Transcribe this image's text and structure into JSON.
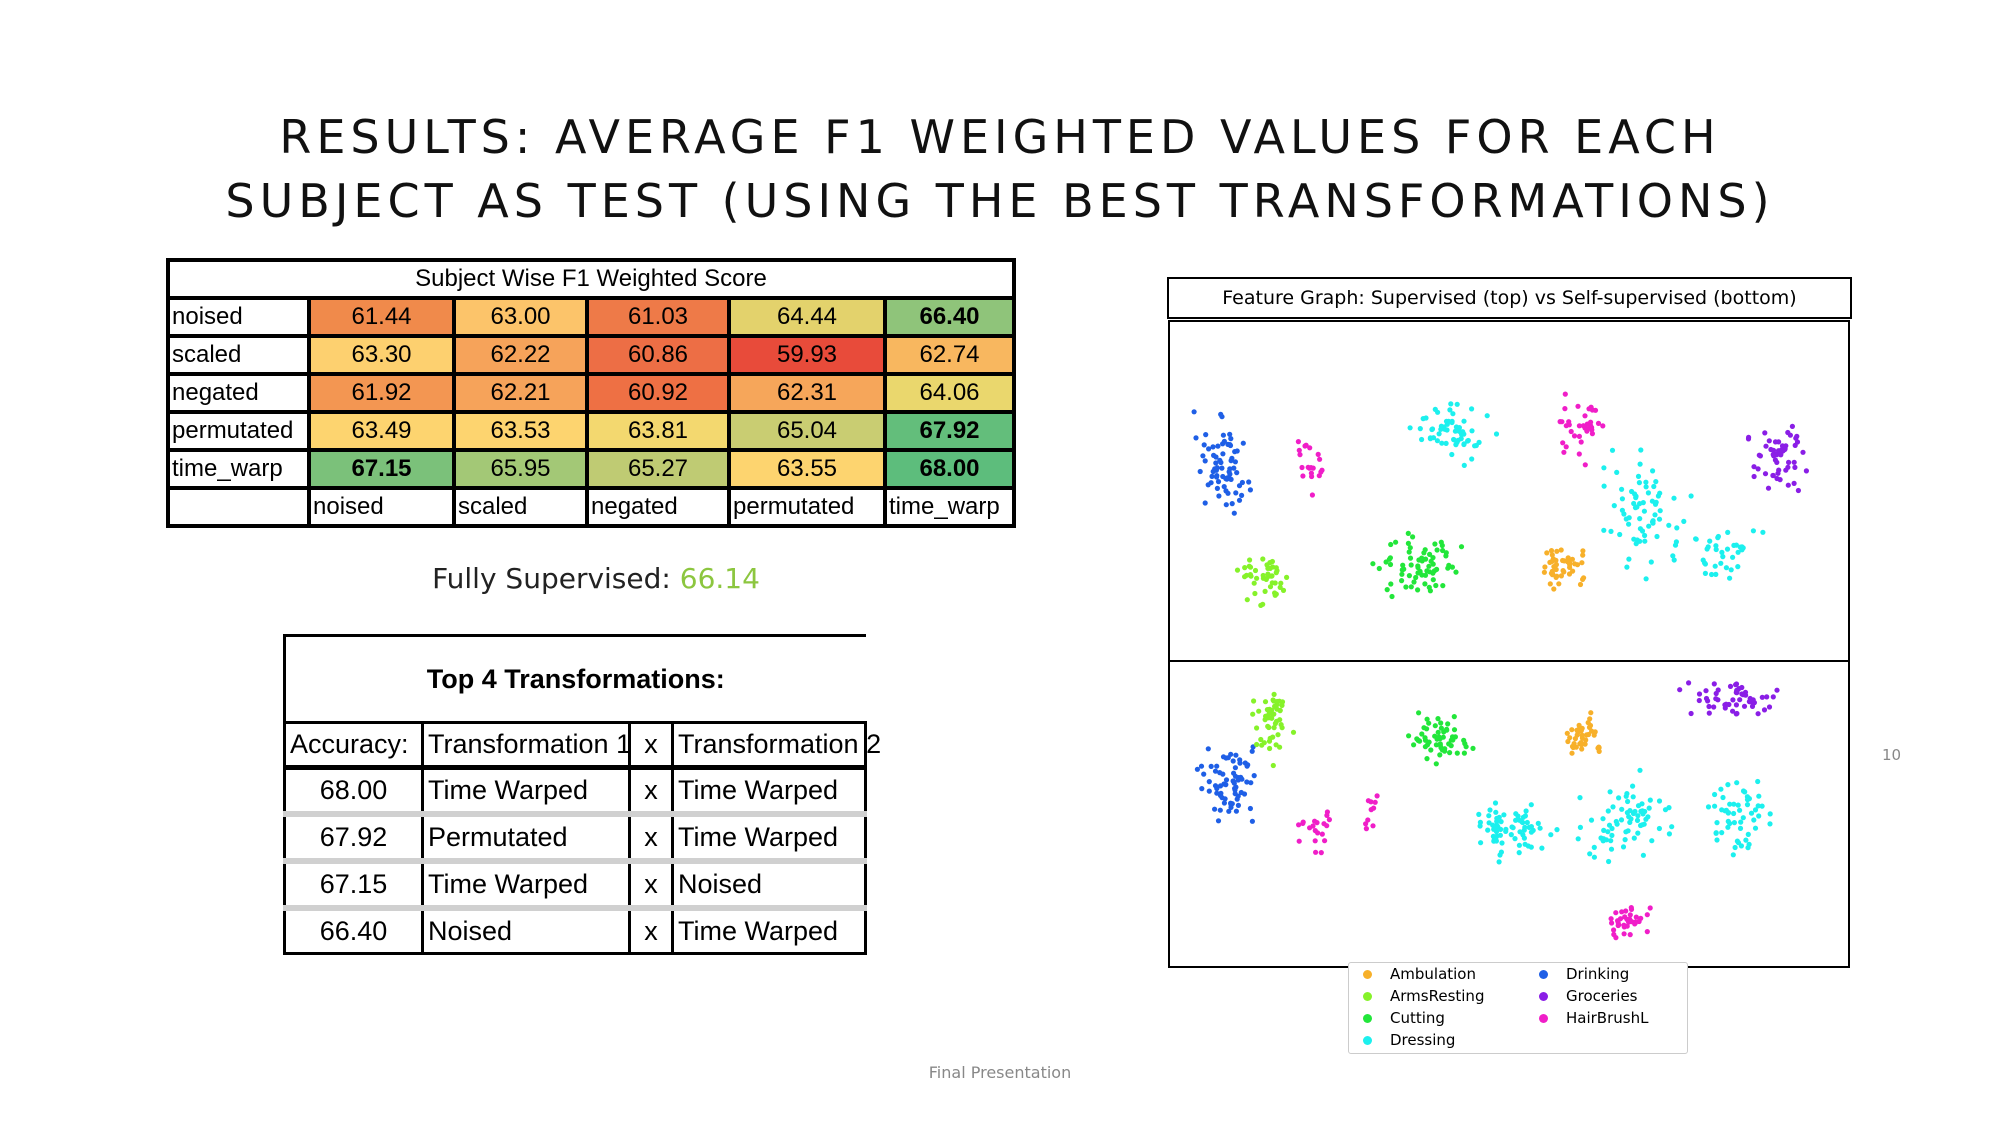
{
  "title_lines": [
    "RESULTS: AVERAGE F1 WEIGHTED VALUES FOR EACH",
    "SUBJECT AS TEST (USING THE BEST TRANSFORMATIONS)"
  ],
  "score_table": {
    "title": "Subject Wise F1 Weighted Score",
    "rows": [
      {
        "label": "noised",
        "cells": [
          {
            "text": "61.44",
            "color": "#f08a4b"
          },
          {
            "text": "63.00",
            "color": "#fcc46a"
          },
          {
            "text": "61.03",
            "color": "#ee7a48"
          },
          {
            "text": "64.44",
            "color": "#e3d26c"
          },
          {
            "text": "66.40",
            "color": "#8fc47a",
            "bold": true
          }
        ]
      },
      {
        "label": "scaled",
        "cells": [
          {
            "text": "63.30",
            "color": "#fdd06f"
          },
          {
            "text": "62.22",
            "color": "#f6a35a"
          },
          {
            "text": "60.86",
            "color": "#ed6e45"
          },
          {
            "text": "59.93",
            "color": "#e84b3a"
          },
          {
            "text": "62.74",
            "color": "#f8b75f"
          }
        ]
      },
      {
        "label": "negated",
        "cells": [
          {
            "text": "61.92",
            "color": "#f39652"
          },
          {
            "text": "62.21",
            "color": "#f6a35a"
          },
          {
            "text": "60.92",
            "color": "#ee7044"
          },
          {
            "text": "62.31",
            "color": "#f6a65a"
          },
          {
            "text": "64.06",
            "color": "#ead76d"
          }
        ]
      },
      {
        "label": "permutated",
        "cells": [
          {
            "text": "63.49",
            "color": "#fdd46f"
          },
          {
            "text": "63.53",
            "color": "#fdd46f"
          },
          {
            "text": "63.81",
            "color": "#f3d86f"
          },
          {
            "text": "65.04",
            "color": "#c9cd72"
          },
          {
            "text": "67.92",
            "color": "#63be7b",
            "bold": true
          }
        ]
      },
      {
        "label": "time_warp",
        "cells": [
          {
            "text": "67.15",
            "color": "#7bc17a",
            "bold": true
          },
          {
            "text": "65.95",
            "color": "#a3c876"
          },
          {
            "text": "65.27",
            "color": "#bfcb73"
          },
          {
            "text": "63.55",
            "color": "#fdd46f"
          },
          {
            "text": "68.00",
            "color": "#5dbd7c",
            "bold": true
          }
        ]
      }
    ],
    "column_labels": [
      "noised",
      "scaled",
      "negated",
      "permutated",
      "time_warp"
    ]
  },
  "fully_supervised": {
    "label": "Fully Supervised:",
    "value": "66.14",
    "value_color": "#8cc63f"
  },
  "top_table": {
    "title": "Top 4 Transformations:",
    "header": [
      "Accuracy:",
      "Transformation 1",
      "x",
      "Transformation 2"
    ],
    "rows": [
      [
        "68.00",
        "Time Warped",
        "x",
        "Time Warped"
      ],
      [
        "67.92",
        "Permutated",
        "x",
        "Time Warped"
      ],
      [
        "67.15",
        "Time Warped",
        "x",
        "Noised"
      ],
      [
        "66.40",
        "Noised",
        "x",
        "Time Warped"
      ]
    ]
  },
  "feature_graph": {
    "caption": "Feature Graph: Supervised (top) vs Self-supervised (bottom)",
    "legend": [
      {
        "label": "Ambulation",
        "color": "#f7b02a"
      },
      {
        "label": "ArmsResting",
        "color": "#86f22a"
      },
      {
        "label": "Cutting",
        "color": "#22e63a"
      },
      {
        "label": "Dressing",
        "color": "#1cf0ee"
      },
      {
        "label": "Drinking",
        "color": "#1f5fe6"
      },
      {
        "label": "Groceries",
        "color": "#8a1ee6"
      },
      {
        "label": "HairBrushL",
        "color": "#f01ec8"
      }
    ]
  },
  "page_number": "10",
  "footer": "Final Presentation"
}
